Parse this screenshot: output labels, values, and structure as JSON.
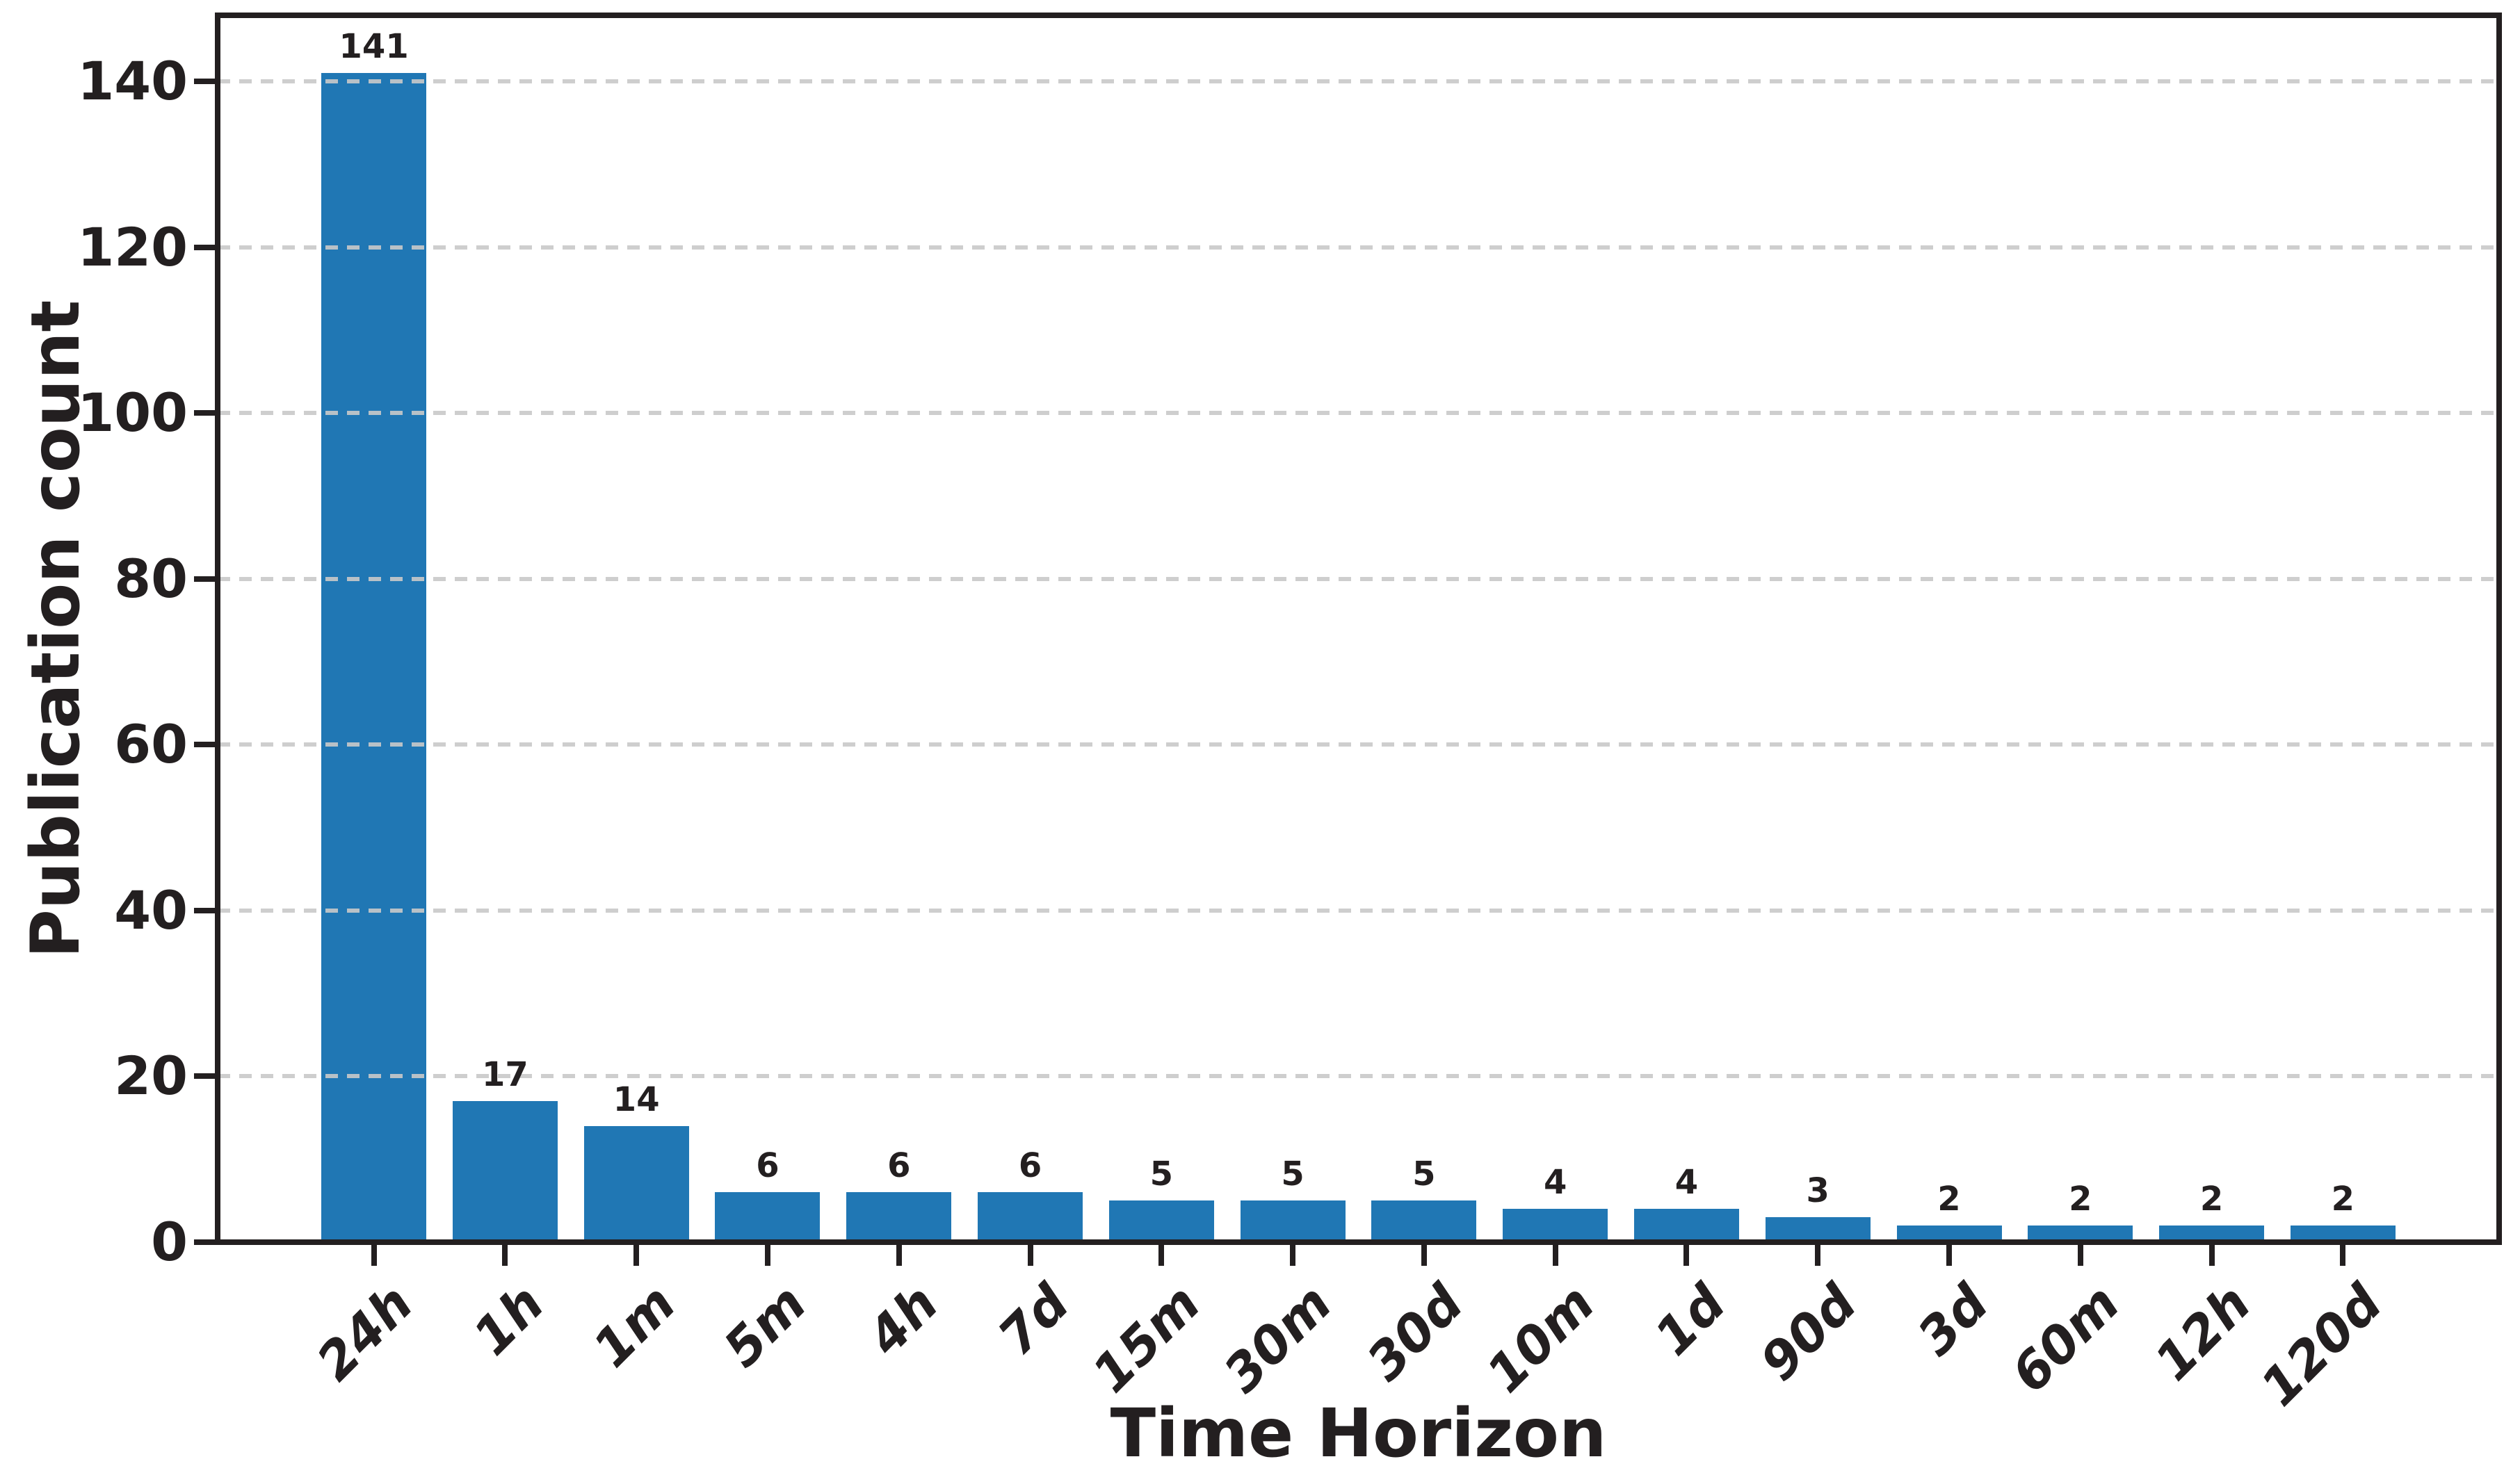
{
  "figure": {
    "title": "",
    "ylabel": "Publication count",
    "xlabel": "Time Horizon"
  },
  "chart_data": {
    "type": "bar",
    "title": "",
    "categories": [
      "24h",
      "1h",
      "1m",
      "5m",
      "4h",
      "7d",
      "15m",
      "30m",
      "30d",
      "10m",
      "1d",
      "90d",
      "3d",
      "60m",
      "12h",
      "120d"
    ],
    "values": [
      141,
      17,
      14,
      6,
      6,
      6,
      5,
      5,
      5,
      4,
      4,
      3,
      2,
      2,
      2,
      2
    ],
    "bar_labels": [
      "141",
      "17",
      "14",
      "6",
      "6",
      "6",
      "5",
      "5",
      "5",
      "4",
      "4",
      "3",
      "2",
      "2",
      "2",
      "2"
    ],
    "xlabel": "Time Horizon",
    "ylabel": "Publication count",
    "ylim": [
      0,
      148
    ],
    "yticks": [
      0,
      20,
      40,
      60,
      80,
      100,
      120,
      140
    ],
    "grid": "horizontal-dashed-above-bars",
    "legend": null,
    "colors": {
      "bar": "#2077b4",
      "text": "#231f20",
      "grid": "#c9c9c9",
      "spine": "#231f20",
      "background": "#ffffff"
    }
  }
}
